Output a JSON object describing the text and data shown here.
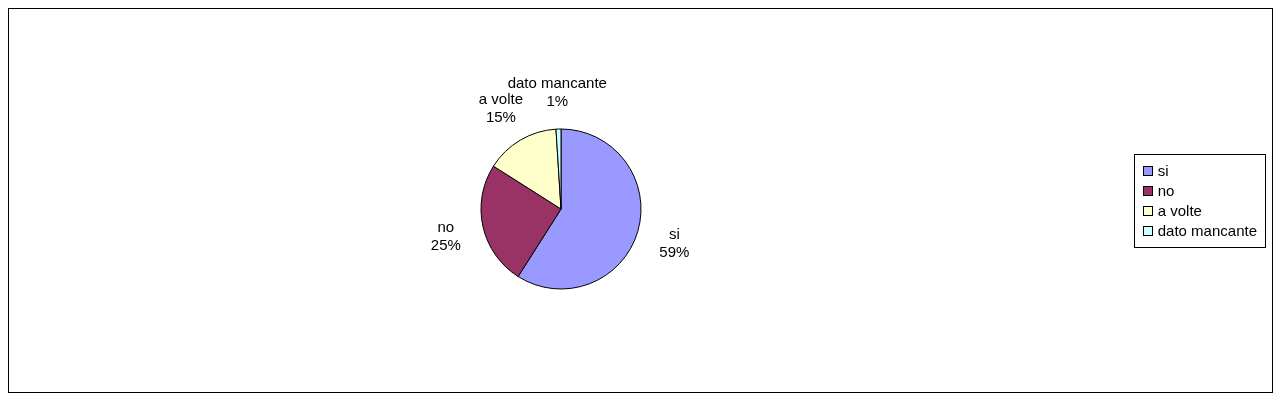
{
  "chart_data": {
    "type": "pie",
    "categories": [
      "si",
      "no",
      "a volte",
      "dato mancante"
    ],
    "values": [
      59,
      25,
      15,
      1
    ],
    "colors": [
      "#9999ff",
      "#993366",
      "#ffffcc",
      "#ccffff"
    ],
    "value_labels": [
      "59%",
      "25%",
      "15%",
      "1%"
    ],
    "legend": "right"
  }
}
